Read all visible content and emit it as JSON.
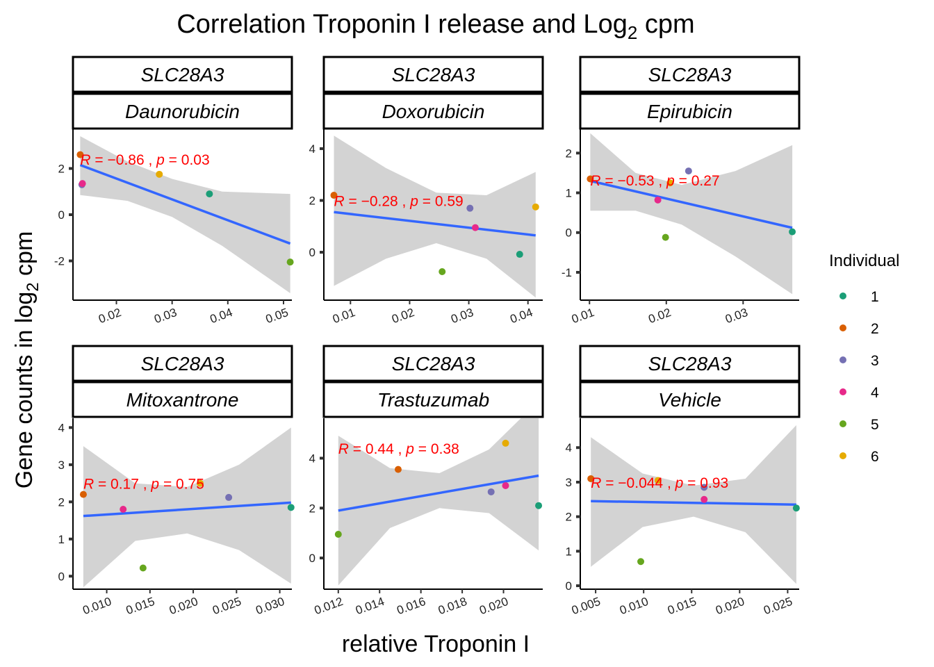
{
  "title": {
    "main": "Correlation Troponin I release and Log",
    "sub": "2",
    "tail": " cpm"
  },
  "ylabel": {
    "main": "Gene counts in log",
    "sub": "2",
    "tail": "  cpm"
  },
  "xlabel": "relative Troponin I",
  "legend": {
    "title": "Individual",
    "position": "right",
    "items": [
      {
        "label": "1",
        "color": "#1B9E77"
      },
      {
        "label": "2",
        "color": "#D95F02"
      },
      {
        "label": "3",
        "color": "#7570B3"
      },
      {
        "label": "4",
        "color": "#E7298A"
      },
      {
        "label": "5",
        "color": "#66A61E"
      },
      {
        "label": "6",
        "color": "#E6AB02"
      }
    ]
  },
  "colors": {
    "fit_line": "#3366FF",
    "ribbon": "#D3D3D3",
    "stat_text": "#FF0000"
  },
  "chart_data": [
    {
      "type": "scatter",
      "gene": "SLC28A3",
      "drug": "Daunorubicin",
      "stat": {
        "R": "−0.86",
        "p": "0.03"
      },
      "xlim": [
        0.0122,
        0.0515
      ],
      "ylim": [
        -3.7,
        3.7
      ],
      "xticks": [
        0.02,
        0.03,
        0.04,
        0.05
      ],
      "xtick_labels": [
        "0.02",
        "0.03",
        "0.04",
        "0.05"
      ],
      "yticks": [
        -2,
        0,
        2
      ],
      "ytick_labels": [
        "-2",
        "0",
        "2"
      ],
      "points": [
        {
          "x": 0.0135,
          "y": 2.6,
          "ind": "2"
        },
        {
          "x": 0.0138,
          "y": 1.3,
          "ind": "3"
        },
        {
          "x": 0.0139,
          "y": 1.35,
          "ind": "4"
        },
        {
          "x": 0.0277,
          "y": 1.75,
          "ind": "6"
        },
        {
          "x": 0.0367,
          "y": 0.9,
          "ind": "1"
        },
        {
          "x": 0.0512,
          "y": -2.05,
          "ind": "5"
        }
      ],
      "fit": {
        "x": [
          0.0135,
          0.0512
        ],
        "y": [
          2.15,
          -1.25
        ]
      },
      "ribbon": {
        "x": [
          0.0135,
          0.022,
          0.03,
          0.039,
          0.0512
        ],
        "lower": [
          0.85,
          0.6,
          -0.1,
          -1.35,
          -3.4
        ],
        "upper": [
          3.4,
          2.3,
          1.55,
          1.0,
          0.9
        ]
      },
      "label_at": {
        "x": 0.0135,
        "y": 2.4
      }
    },
    {
      "type": "scatter",
      "gene": "SLC28A3",
      "drug": "Doxorubicin",
      "stat": {
        "R": "−0.28",
        "p": "0.59"
      },
      "xlim": [
        0.0055,
        0.0425
      ],
      "ylim": [
        -1.85,
        4.75
      ],
      "xticks": [
        0.01,
        0.02,
        0.03,
        0.04
      ],
      "xtick_labels": [
        "0.01",
        "0.02",
        "0.03",
        "0.04"
      ],
      "yticks": [
        0,
        2,
        4
      ],
      "ytick_labels": [
        "0",
        "2",
        "4"
      ],
      "points": [
        {
          "x": 0.0072,
          "y": 2.2,
          "ind": "2"
        },
        {
          "x": 0.0255,
          "y": -0.75,
          "ind": "5"
        },
        {
          "x": 0.0302,
          "y": 1.7,
          "ind": "3"
        },
        {
          "x": 0.0311,
          "y": 0.95,
          "ind": "4"
        },
        {
          "x": 0.0386,
          "y": -0.08,
          "ind": "1"
        },
        {
          "x": 0.0413,
          "y": 1.75,
          "ind": "6"
        }
      ],
      "fit": {
        "x": [
          0.0072,
          0.0413
        ],
        "y": [
          1.55,
          0.65
        ]
      },
      "ribbon": {
        "x": [
          0.0072,
          0.016,
          0.0245,
          0.033,
          0.0413
        ],
        "lower": [
          -1.3,
          -0.25,
          0.35,
          -0.25,
          -1.75
        ],
        "upper": [
          4.5,
          3.25,
          2.3,
          2.2,
          3.1
        ]
      },
      "label_at": {
        "x": 0.0072,
        "y": 2.0
      }
    },
    {
      "type": "scatter",
      "gene": "SLC28A3",
      "drug": "Epirubicin",
      "stat": {
        "R": "−0.53",
        "p": "0.27"
      },
      "xlim": [
        0.0088,
        0.0373
      ],
      "ylim": [
        -1.7,
        2.6
      ],
      "xticks": [
        0.01,
        0.02,
        0.03
      ],
      "xtick_labels": [
        "0.01",
        "0.02",
        "0.03"
      ],
      "yticks": [
        -1,
        0,
        1,
        2
      ],
      "ytick_labels": [
        "-1",
        "0",
        "1",
        "2"
      ],
      "points": [
        {
          "x": 0.0101,
          "y": 1.35,
          "ind": "2"
        },
        {
          "x": 0.0189,
          "y": 0.82,
          "ind": "4"
        },
        {
          "x": 0.0199,
          "y": -0.12,
          "ind": "5"
        },
        {
          "x": 0.0205,
          "y": 1.25,
          "ind": "6"
        },
        {
          "x": 0.0229,
          "y": 1.55,
          "ind": "3"
        },
        {
          "x": 0.0364,
          "y": 0.02,
          "ind": "1"
        }
      ],
      "fit": {
        "x": [
          0.0101,
          0.0364
        ],
        "y": [
          1.3,
          0.12
        ]
      },
      "ribbon": {
        "x": [
          0.0101,
          0.016,
          0.022,
          0.029,
          0.0364
        ],
        "lower": [
          0.55,
          0.55,
          0.2,
          -0.6,
          -1.55
        ],
        "upper": [
          2.5,
          1.5,
          1.2,
          1.55,
          2.2
        ]
      },
      "label_at": {
        "x": 0.0101,
        "y": 1.32
      }
    },
    {
      "type": "scatter",
      "gene": "SLC28A3",
      "drug": "Mitoxantrone",
      "stat": {
        "R": "0.17",
        "p": "0.75"
      },
      "xlim": [
        0.0061,
        0.0314
      ],
      "ylim": [
        -0.35,
        4.25
      ],
      "xticks": [
        0.01,
        0.015,
        0.02,
        0.025,
        0.03
      ],
      "xtick_labels": [
        "0.010",
        "0.015",
        "0.020",
        "0.025",
        "0.030"
      ],
      "yticks": [
        0,
        1,
        2,
        3,
        4
      ],
      "ytick_labels": [
        "0",
        "1",
        "2",
        "3",
        "4"
      ],
      "points": [
        {
          "x": 0.0073,
          "y": 2.2,
          "ind": "2"
        },
        {
          "x": 0.0119,
          "y": 1.8,
          "ind": "4"
        },
        {
          "x": 0.0142,
          "y": 0.22,
          "ind": "5"
        },
        {
          "x": 0.0208,
          "y": 2.5,
          "ind": "6"
        },
        {
          "x": 0.0241,
          "y": 2.12,
          "ind": "3"
        },
        {
          "x": 0.0313,
          "y": 1.85,
          "ind": "1"
        }
      ],
      "fit": {
        "x": [
          0.0073,
          0.0313
        ],
        "y": [
          1.62,
          1.98
        ]
      },
      "ribbon": {
        "x": [
          0.0073,
          0.0133,
          0.0193,
          0.0253,
          0.0313
        ],
        "lower": [
          -0.3,
          0.95,
          1.15,
          0.7,
          -0.2
        ],
        "upper": [
          3.5,
          2.5,
          2.4,
          3.0,
          4.0
        ]
      },
      "label_at": {
        "x": 0.0073,
        "y": 2.5
      }
    },
    {
      "type": "scatter",
      "gene": "SLC28A3",
      "drug": "Trastuzumab",
      "stat": {
        "R": "0.44",
        "p": "0.38"
      },
      "xlim": [
        0.0113,
        0.0219
      ],
      "ylim": [
        -1.25,
        5.6
      ],
      "xticks": [
        0.012,
        0.014,
        0.016,
        0.018,
        0.02
      ],
      "xtick_labels": [
        "0.012",
        "0.014",
        "0.016",
        "0.018",
        "0.020"
      ],
      "yticks": [
        0,
        2,
        4
      ],
      "ytick_labels": [
        "0",
        "2",
        "4"
      ],
      "points": [
        {
          "x": 0.012,
          "y": 0.95,
          "ind": "5"
        },
        {
          "x": 0.0149,
          "y": 3.55,
          "ind": "2"
        },
        {
          "x": 0.0194,
          "y": 2.65,
          "ind": "3"
        },
        {
          "x": 0.0201,
          "y": 2.9,
          "ind": "4"
        },
        {
          "x": 0.0201,
          "y": 4.6,
          "ind": "6"
        },
        {
          "x": 0.0217,
          "y": 2.1,
          "ind": "1"
        }
      ],
      "fit": {
        "x": [
          0.012,
          0.0217
        ],
        "y": [
          1.9,
          3.3
        ]
      },
      "ribbon": {
        "x": [
          0.012,
          0.0145,
          0.0169,
          0.0193,
          0.0217
        ],
        "lower": [
          -1.1,
          1.2,
          2.0,
          1.8,
          0.3
        ],
        "upper": [
          4.9,
          3.6,
          3.4,
          4.35,
          6.3
        ]
      },
      "label_at": {
        "x": 0.012,
        "y": 4.4
      }
    },
    {
      "type": "scatter",
      "gene": "SLC28A3",
      "drug": "Vehicle",
      "stat": {
        "R": "−0.044",
        "p": "0.93"
      },
      "xlim": [
        0.0034,
        0.0262
      ],
      "ylim": [
        -0.1,
        4.85
      ],
      "xticks": [
        0.005,
        0.01,
        0.015,
        0.02,
        0.025
      ],
      "xtick_labels": [
        "0.005",
        "0.010",
        "0.015",
        "0.020",
        "0.025"
      ],
      "yticks": [
        0,
        1,
        2,
        3,
        4
      ],
      "ytick_labels": [
        "0",
        "1",
        "2",
        "3",
        "4"
      ],
      "points": [
        {
          "x": 0.0045,
          "y": 3.1,
          "ind": "2"
        },
        {
          "x": 0.0097,
          "y": 0.7,
          "ind": "5"
        },
        {
          "x": 0.0115,
          "y": 3.05,
          "ind": "6"
        },
        {
          "x": 0.0163,
          "y": 2.85,
          "ind": "3"
        },
        {
          "x": 0.0163,
          "y": 2.5,
          "ind": "4"
        },
        {
          "x": 0.0259,
          "y": 2.25,
          "ind": "1"
        }
      ],
      "fit": {
        "x": [
          0.0045,
          0.0259
        ],
        "y": [
          2.45,
          2.35
        ]
      },
      "ribbon": {
        "x": [
          0.0045,
          0.0099,
          0.0152,
          0.0206,
          0.0259
        ],
        "lower": [
          0.55,
          1.7,
          2.0,
          1.55,
          0.05
        ],
        "upper": [
          4.3,
          3.25,
          2.9,
          3.1,
          4.65
        ]
      },
      "label_at": {
        "x": 0.0045,
        "y": 3.0
      }
    }
  ]
}
